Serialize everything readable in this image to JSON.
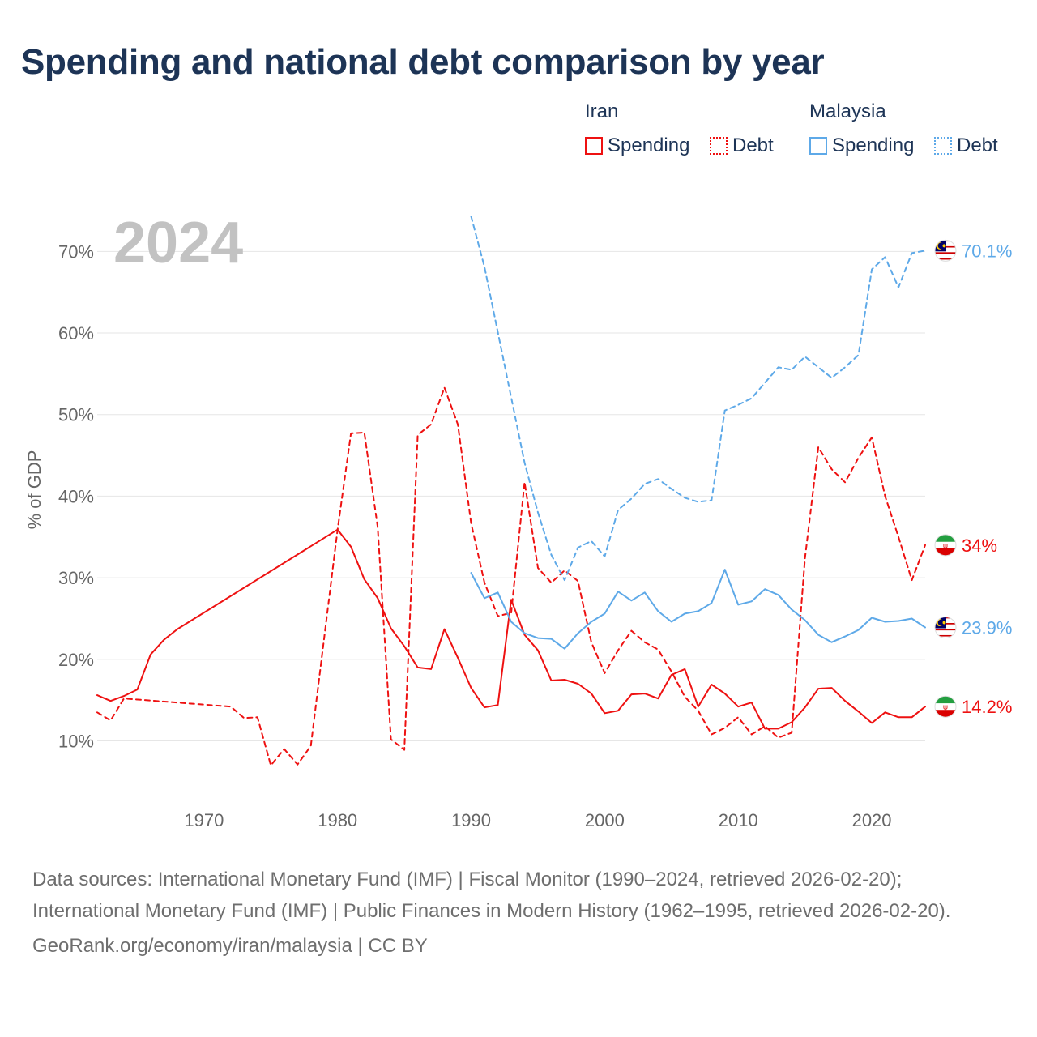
{
  "title": "Spending and national debt comparison by year",
  "legend": {
    "groups": [
      {
        "name": "Iran",
        "color": "#ee1111",
        "items": [
          {
            "label": "Spending",
            "style": "solid"
          },
          {
            "label": "Debt",
            "style": "dotted"
          }
        ]
      },
      {
        "name": "Malaysia",
        "color": "#5ea9e8",
        "items": [
          {
            "label": "Spending",
            "style": "solid"
          },
          {
            "label": "Debt",
            "style": "dotted"
          }
        ]
      }
    ]
  },
  "footer": {
    "sources": "Data sources: International Monetary Fund (IMF) | Fiscal Monitor (1990–2024, retrieved 2026-02-20); International Monetary Fund (IMF) | Public Finances in Modern History (1962–1995, retrieved 2026-02-20).",
    "credit": "GeoRank.org/economy/iran/malaysia | CC BY"
  },
  "chart_data": {
    "type": "line",
    "year_label": "2024",
    "ylabel": "% of GDP",
    "xlabel": "",
    "xlim": [
      1962,
      2024
    ],
    "ylim": [
      3,
      75
    ],
    "x_ticks": [
      1970,
      1980,
      1990,
      2000,
      2010,
      2020
    ],
    "y_ticks": [
      10,
      20,
      30,
      40,
      50,
      60,
      70
    ],
    "y_tick_suffix": "%",
    "grid": true,
    "series": [
      {
        "name": "Iran Spending",
        "country": "Iran",
        "metric": "Spending",
        "color": "#ee1111",
        "dash": "solid",
        "points": [
          [
            1962,
            15.6
          ],
          [
            1963,
            14.9
          ],
          [
            1964,
            15.5
          ],
          [
            1965,
            16.3
          ],
          [
            1966,
            20.6
          ],
          [
            1967,
            22.4
          ],
          [
            1968,
            23.7
          ],
          [
            1980,
            35.9
          ],
          [
            1981,
            33.8
          ],
          [
            1982,
            29.8
          ],
          [
            1983,
            27.5
          ],
          [
            1984,
            23.8
          ],
          [
            1985,
            21.6
          ],
          [
            1986,
            19.0
          ],
          [
            1987,
            18.8
          ],
          [
            1988,
            23.7
          ],
          [
            1989,
            20.2
          ],
          [
            1990,
            16.5
          ],
          [
            1991,
            14.1
          ],
          [
            1992,
            14.4
          ],
          [
            1993,
            27.3
          ],
          [
            1994,
            23.0
          ],
          [
            1995,
            21.1
          ],
          [
            1996,
            17.4
          ],
          [
            1997,
            17.5
          ],
          [
            1998,
            17.0
          ],
          [
            1999,
            15.8
          ],
          [
            2000,
            13.4
          ],
          [
            2001,
            13.7
          ],
          [
            2002,
            15.7
          ],
          [
            2003,
            15.8
          ],
          [
            2004,
            15.2
          ],
          [
            2005,
            18.1
          ],
          [
            2006,
            18.8
          ],
          [
            2007,
            14.2
          ],
          [
            2008,
            16.9
          ],
          [
            2009,
            15.8
          ],
          [
            2010,
            14.2
          ],
          [
            2011,
            14.7
          ],
          [
            2012,
            11.5
          ],
          [
            2013,
            11.5
          ],
          [
            2014,
            12.3
          ],
          [
            2015,
            14.1
          ],
          [
            2016,
            16.4
          ],
          [
            2017,
            16.5
          ],
          [
            2018,
            14.9
          ],
          [
            2019,
            13.6
          ],
          [
            2020,
            12.2
          ],
          [
            2021,
            13.5
          ],
          [
            2022,
            12.9
          ],
          [
            2023,
            12.9
          ],
          [
            2024,
            14.2
          ]
        ],
        "end_label": "14.2%"
      },
      {
        "name": "Iran Debt",
        "country": "Iran",
        "metric": "Debt",
        "color": "#ee1111",
        "dash": "dashed",
        "points": [
          [
            1962,
            13.5
          ],
          [
            1963,
            12.5
          ],
          [
            1964,
            15.2
          ],
          [
            1972,
            14.2
          ],
          [
            1973,
            12.8
          ],
          [
            1974,
            12.9
          ],
          [
            1975,
            7.0
          ],
          [
            1976,
            9.0
          ],
          [
            1977,
            7.1
          ],
          [
            1978,
            9.4
          ],
          [
            1980,
            35.9
          ],
          [
            1981,
            47.7
          ],
          [
            1982,
            47.8
          ],
          [
            1983,
            36.2
          ],
          [
            1984,
            10.2
          ],
          [
            1985,
            8.9
          ],
          [
            1986,
            47.5
          ],
          [
            1987,
            48.8
          ],
          [
            1988,
            53.3
          ],
          [
            1989,
            48.8
          ],
          [
            1990,
            36.7
          ],
          [
            1991,
            29.4
          ],
          [
            1992,
            25.3
          ],
          [
            1993,
            25.7
          ],
          [
            1994,
            41.7
          ],
          [
            1995,
            31.2
          ],
          [
            1996,
            29.4
          ],
          [
            1997,
            30.9
          ],
          [
            1998,
            29.6
          ],
          [
            1999,
            22.1
          ],
          [
            2000,
            18.3
          ],
          [
            2001,
            21.1
          ],
          [
            2002,
            23.5
          ],
          [
            2003,
            22.1
          ],
          [
            2004,
            21.2
          ],
          [
            2005,
            18.5
          ],
          [
            2006,
            15.4
          ],
          [
            2007,
            13.7
          ],
          [
            2008,
            10.8
          ],
          [
            2009,
            11.6
          ],
          [
            2010,
            12.9
          ],
          [
            2011,
            10.8
          ],
          [
            2012,
            11.8
          ],
          [
            2013,
            10.4
          ],
          [
            2014,
            11.0
          ],
          [
            2015,
            32.4
          ],
          [
            2016,
            46.0
          ],
          [
            2017,
            43.3
          ],
          [
            2018,
            41.7
          ],
          [
            2019,
            44.7
          ],
          [
            2020,
            47.2
          ],
          [
            2021,
            40.0
          ],
          [
            2022,
            35.0
          ],
          [
            2023,
            29.7
          ],
          [
            2024,
            34.0
          ]
        ],
        "end_label": "34%"
      },
      {
        "name": "Malaysia Spending",
        "country": "Malaysia",
        "metric": "Spending",
        "color": "#5ea9e8",
        "dash": "solid",
        "points": [
          [
            1990,
            30.6
          ],
          [
            1991,
            27.5
          ],
          [
            1992,
            28.2
          ],
          [
            1993,
            24.6
          ],
          [
            1994,
            23.2
          ],
          [
            1995,
            22.6
          ],
          [
            1996,
            22.5
          ],
          [
            1997,
            21.3
          ],
          [
            1998,
            23.2
          ],
          [
            1999,
            24.6
          ],
          [
            2000,
            25.6
          ],
          [
            2001,
            28.3
          ],
          [
            2002,
            27.2
          ],
          [
            2003,
            28.2
          ],
          [
            2004,
            25.9
          ],
          [
            2005,
            24.6
          ],
          [
            2006,
            25.6
          ],
          [
            2007,
            25.9
          ],
          [
            2008,
            26.9
          ],
          [
            2009,
            31.0
          ],
          [
            2010,
            26.7
          ],
          [
            2011,
            27.1
          ],
          [
            2012,
            28.6
          ],
          [
            2013,
            27.9
          ],
          [
            2014,
            26.1
          ],
          [
            2015,
            24.8
          ],
          [
            2016,
            23.0
          ],
          [
            2017,
            22.1
          ],
          [
            2018,
            22.8
          ],
          [
            2019,
            23.6
          ],
          [
            2020,
            25.1
          ],
          [
            2021,
            24.6
          ],
          [
            2022,
            24.7
          ],
          [
            2023,
            25.0
          ],
          [
            2024,
            23.9
          ]
        ],
        "end_label": "23.9%"
      },
      {
        "name": "Malaysia Debt",
        "country": "Malaysia",
        "metric": "Debt",
        "color": "#5ea9e8",
        "dash": "dashed",
        "points": [
          [
            1990,
            74.3
          ],
          [
            1991,
            68.1
          ],
          [
            1992,
            60.1
          ],
          [
            1993,
            52.1
          ],
          [
            1994,
            44.1
          ],
          [
            1995,
            38.0
          ],
          [
            1996,
            32.8
          ],
          [
            1997,
            29.7
          ],
          [
            1998,
            33.7
          ],
          [
            1999,
            34.5
          ],
          [
            2000,
            32.6
          ],
          [
            2001,
            38.3
          ],
          [
            2002,
            39.7
          ],
          [
            2003,
            41.5
          ],
          [
            2004,
            42.1
          ],
          [
            2005,
            40.9
          ],
          [
            2006,
            39.8
          ],
          [
            2007,
            39.3
          ],
          [
            2008,
            39.5
          ],
          [
            2009,
            50.5
          ],
          [
            2010,
            51.2
          ],
          [
            2011,
            52.0
          ],
          [
            2012,
            53.9
          ],
          [
            2013,
            55.8
          ],
          [
            2014,
            55.5
          ],
          [
            2015,
            57.1
          ],
          [
            2016,
            55.8
          ],
          [
            2017,
            54.5
          ],
          [
            2018,
            55.8
          ],
          [
            2019,
            57.3
          ],
          [
            2020,
            67.8
          ],
          [
            2021,
            69.3
          ],
          [
            2022,
            65.6
          ],
          [
            2023,
            69.8
          ],
          [
            2024,
            70.1
          ]
        ],
        "end_label": "70.1%"
      }
    ]
  }
}
